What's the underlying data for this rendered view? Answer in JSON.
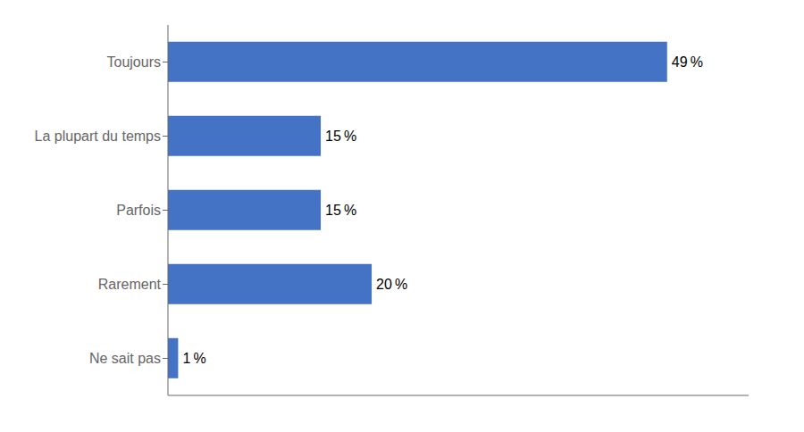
{
  "chart_data": {
    "type": "bar",
    "orientation": "horizontal",
    "categories": [
      "Ne sait pas",
      "Rarement",
      "Parfois",
      "La plupart du temps",
      "Toujours"
    ],
    "values": [
      1,
      20,
      15,
      15,
      49
    ],
    "value_labels": [
      "1 %",
      "20 %",
      "15 %",
      "15 %",
      "49 %"
    ],
    "color": "#4472C4",
    "xlim": [
      0,
      57
    ],
    "data_labels": true,
    "tick_labels": "y",
    "grid": false
  }
}
